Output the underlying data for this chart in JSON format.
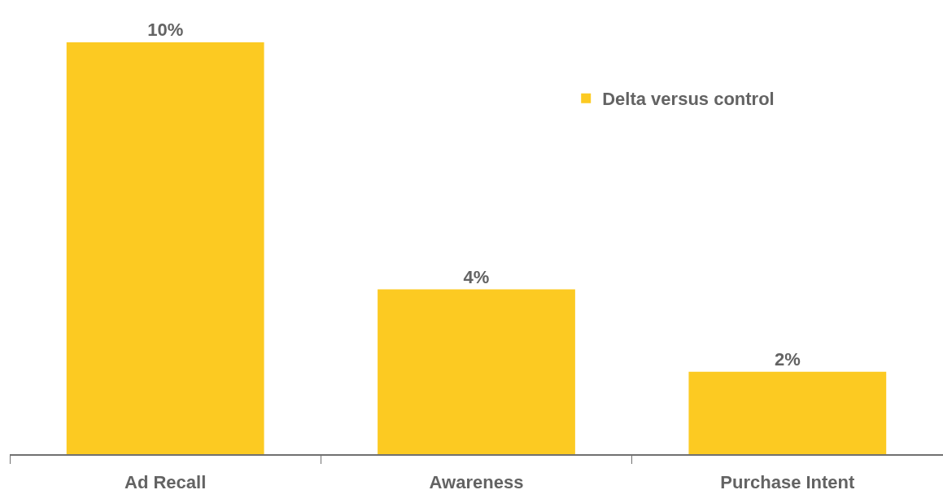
{
  "chart_data": {
    "type": "bar",
    "categories": [
      "Ad Recall",
      "Awareness",
      "Purchase Intent"
    ],
    "series": [
      {
        "name": "Delta versus control",
        "color": "#fcca22",
        "values": [
          10,
          4,
          2
        ],
        "value_labels": [
          "10%",
          "4%",
          "2%"
        ]
      }
    ],
    "ylim": [
      0,
      10
    ],
    "tick_labels": "x",
    "legend": "top right"
  }
}
